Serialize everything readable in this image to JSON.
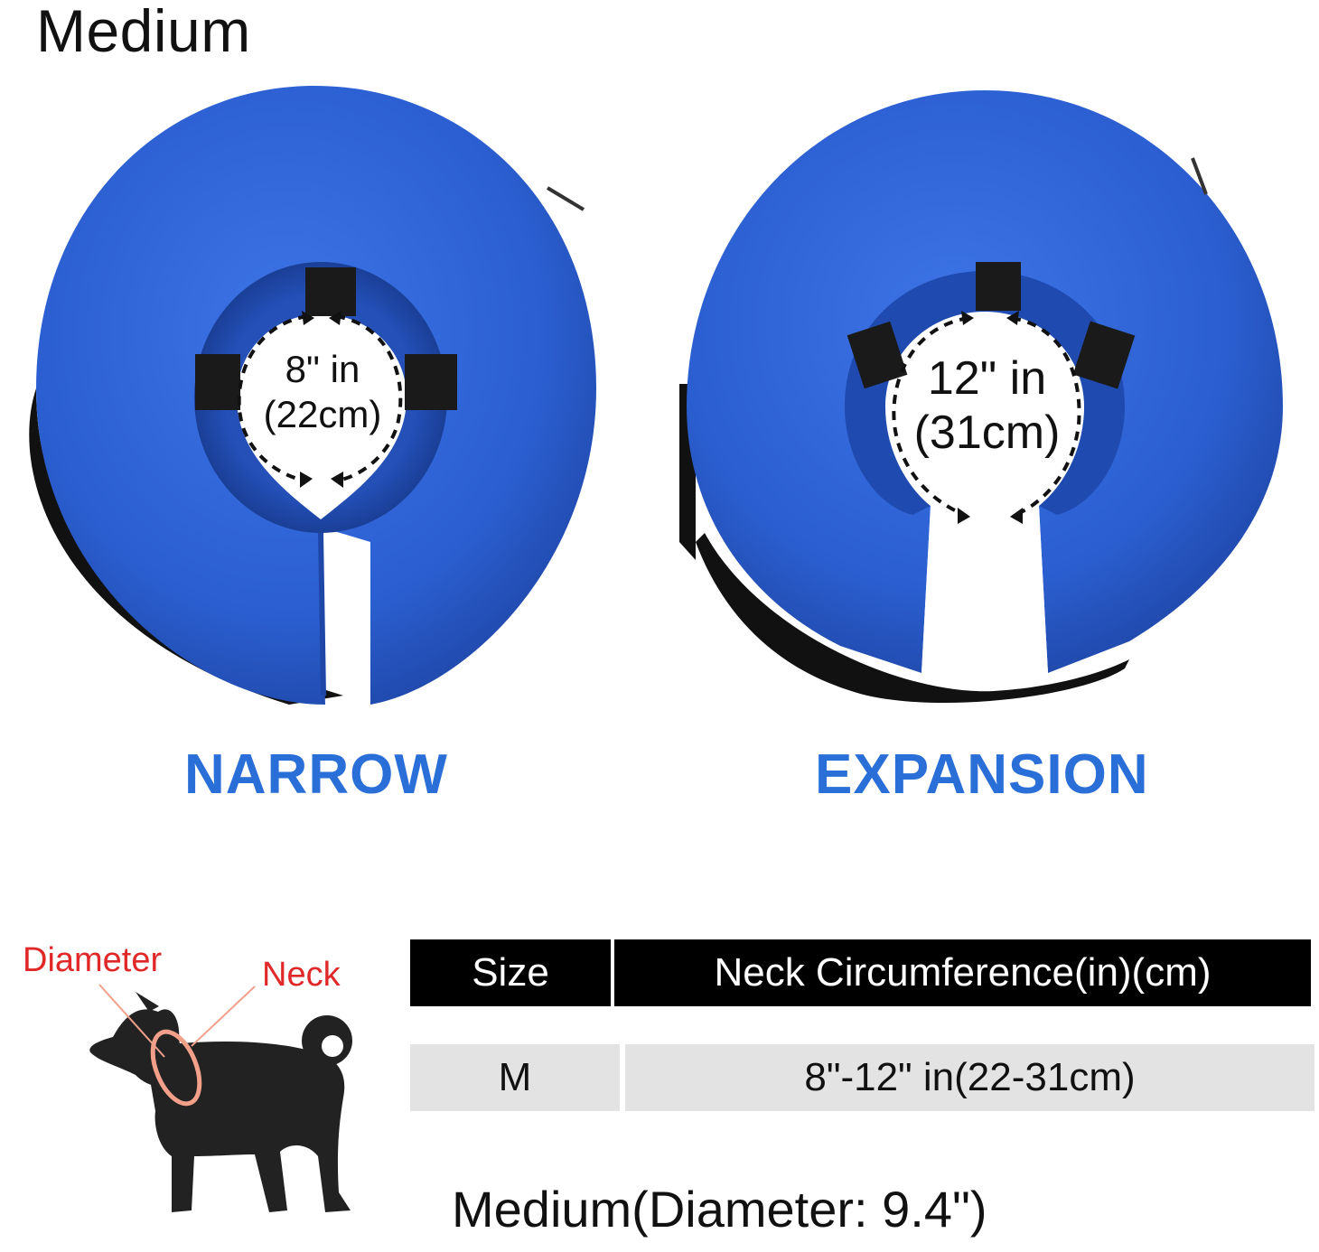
{
  "size_title": "Medium",
  "panels": {
    "narrow": {
      "label": "NARROW",
      "measure_in": "8\" in",
      "measure_cm": "(22cm)"
    },
    "expansion": {
      "label": "EXPANSION",
      "measure_in": "12\" in",
      "measure_cm": "(31cm)"
    }
  },
  "dog_diagram": {
    "diameter_label": "Diameter",
    "neck_label": "Neck"
  },
  "size_table": {
    "headers": [
      "Size",
      "Neck Circumference(in)(cm)"
    ],
    "rows": [
      {
        "size": "M",
        "neck": "8\"-12\" in(22-31cm)"
      }
    ]
  },
  "footnote": "Medium(Diameter: 9.4\")",
  "colors": {
    "collar_blue": "#2b5fd1",
    "label_blue": "#2a6fd8",
    "diagram_red": "#e02828",
    "strap_black": "#111111"
  }
}
